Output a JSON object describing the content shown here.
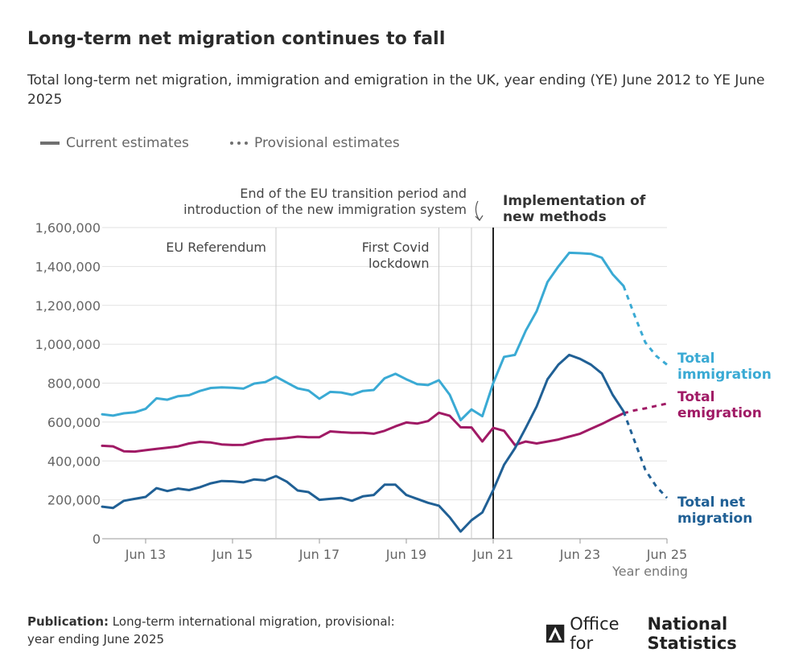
{
  "title": "Long-term net migration continues to fall",
  "subtitle": "Total long-term net migration, immigration and emigration in the UK, year ending (YE) June 2012 to YE June 2025",
  "legend": {
    "current": "Current estimates",
    "provisional": "Provisional estimates"
  },
  "footer": {
    "label": "Publication:",
    "text": "Long-term international migration, provisional: year ending June 2025"
  },
  "logo": {
    "pre": "Office for",
    "bold": "National Statistics"
  },
  "chart_data": {
    "type": "line",
    "xlabel": "Year ending",
    "x_ticks": [
      "Jun 13",
      "Jun 15",
      "Jun 17",
      "Jun 19",
      "Jun 21",
      "Jun 23",
      "Jun 25"
    ],
    "x_tick_values": [
      2013.5,
      2015.5,
      2017.5,
      2019.5,
      2021.5,
      2023.5,
      2025.5
    ],
    "xlim": [
      2012.5,
      2025.5
    ],
    "ylim": [
      0,
      1600000
    ],
    "y_ticks": [
      "0",
      "200,000",
      "400,000",
      "600,000",
      "800,000",
      "1,000,000",
      "1,200,000",
      "1,400,000",
      "1,600,000"
    ],
    "y_tick_values": [
      0,
      200000,
      400000,
      600000,
      800000,
      1000000,
      1200000,
      1400000,
      1600000
    ],
    "grid": "horizontal",
    "annotations": [
      {
        "x": 2016.5,
        "lines": [
          "EU Referendum"
        ],
        "style": "thin"
      },
      {
        "x": 2020.25,
        "lines": [
          "First Covid",
          "lockdown"
        ],
        "style": "thin"
      },
      {
        "x": 2021.0,
        "lines": [
          "End of the EU transition period and",
          "introduction of the new immigration system"
        ],
        "style": "thin"
      },
      {
        "x": 2021.5,
        "lines": [
          "Implementation of",
          "new methods"
        ],
        "style": "bold"
      }
    ],
    "series": [
      {
        "name": "Total immigration",
        "label_lines": [
          "Total",
          "immigration"
        ],
        "color": "#3aaad4",
        "x": [
          2012.5,
          2012.75,
          2013.0,
          2013.25,
          2013.5,
          2013.75,
          2014.0,
          2014.25,
          2014.5,
          2014.75,
          2015.0,
          2015.25,
          2015.5,
          2015.75,
          2016.0,
          2016.25,
          2016.5,
          2016.75,
          2017.0,
          2017.25,
          2017.5,
          2017.75,
          2018.0,
          2018.25,
          2018.5,
          2018.75,
          2019.0,
          2019.25,
          2019.5,
          2019.75,
          2020.0,
          2020.25,
          2020.5,
          2020.75,
          2021.0,
          2021.25,
          2021.5,
          2021.75,
          2022.0,
          2022.25,
          2022.5,
          2022.75,
          2023.0,
          2023.25,
          2023.5,
          2023.75,
          2024.0,
          2024.25,
          2024.5,
          2024.75,
          2025.0,
          2025.25,
          2025.5
        ],
        "values": [
          640000,
          633000,
          645000,
          650000,
          668000,
          722000,
          715000,
          733000,
          738000,
          760000,
          775000,
          778000,
          776000,
          772000,
          798000,
          805000,
          833000,
          803000,
          773000,
          762000,
          720000,
          755000,
          752000,
          740000,
          760000,
          765000,
          825000,
          848000,
          820000,
          795000,
          790000,
          815000,
          740000,
          610000,
          665000,
          630000,
          800000,
          935000,
          945000,
          1070000,
          1170000,
          1320000,
          1400000,
          1470000,
          1468000,
          1465000,
          1445000,
          1360000,
          1300000,
          1150000,
          1010000,
          940000,
          895000
        ],
        "provisional_from_index": 48
      },
      {
        "name": "Total emigration",
        "label_lines": [
          "Total",
          "emigration"
        ],
        "color": "#a01a65",
        "x": [
          2012.5,
          2012.75,
          2013.0,
          2013.25,
          2013.5,
          2013.75,
          2014.0,
          2014.25,
          2014.5,
          2014.75,
          2015.0,
          2015.25,
          2015.5,
          2015.75,
          2016.0,
          2016.25,
          2016.5,
          2016.75,
          2017.0,
          2017.25,
          2017.5,
          2017.75,
          2018.0,
          2018.25,
          2018.5,
          2018.75,
          2019.0,
          2019.25,
          2019.5,
          2019.75,
          2020.0,
          2020.25,
          2020.5,
          2020.75,
          2021.0,
          2021.25,
          2021.5,
          2021.75,
          2022.0,
          2022.25,
          2022.5,
          2022.75,
          2023.0,
          2023.25,
          2023.5,
          2023.75,
          2024.0,
          2024.25,
          2024.5,
          2024.75,
          2025.0,
          2025.25,
          2025.5
        ],
        "values": [
          478000,
          475000,
          450000,
          448000,
          455000,
          462000,
          468000,
          475000,
          490000,
          498000,
          495000,
          485000,
          482000,
          483000,
          498000,
          510000,
          513000,
          518000,
          525000,
          522000,
          522000,
          552000,
          548000,
          545000,
          545000,
          540000,
          555000,
          578000,
          598000,
          592000,
          605000,
          648000,
          632000,
          573000,
          572000,
          500000,
          570000,
          555000,
          482000,
          500000,
          490000,
          500000,
          510000,
          525000,
          540000,
          565000,
          590000,
          618000,
          645000,
          660000,
          670000,
          683000,
          695000
        ],
        "provisional_from_index": 48
      },
      {
        "name": "Total net migration",
        "label_lines": [
          "Total net",
          "migration"
        ],
        "color": "#206095",
        "x": [
          2012.5,
          2012.75,
          2013.0,
          2013.25,
          2013.5,
          2013.75,
          2014.0,
          2014.25,
          2014.5,
          2014.75,
          2015.0,
          2015.25,
          2015.5,
          2015.75,
          2016.0,
          2016.25,
          2016.5,
          2016.75,
          2017.0,
          2017.25,
          2017.5,
          2017.75,
          2018.0,
          2018.25,
          2018.5,
          2018.75,
          2019.0,
          2019.25,
          2019.5,
          2019.75,
          2020.0,
          2020.25,
          2020.5,
          2020.75,
          2021.0,
          2021.25,
          2021.5,
          2021.75,
          2022.0,
          2022.25,
          2022.5,
          2022.75,
          2023.0,
          2023.25,
          2023.5,
          2023.75,
          2024.0,
          2024.25,
          2024.5,
          2024.75,
          2025.0,
          2025.25,
          2025.5
        ],
        "values": [
          165000,
          158000,
          195000,
          205000,
          215000,
          260000,
          245000,
          258000,
          250000,
          265000,
          285000,
          297000,
          295000,
          290000,
          305000,
          300000,
          322000,
          293000,
          248000,
          240000,
          200000,
          205000,
          210000,
          195000,
          218000,
          225000,
          278000,
          278000,
          225000,
          205000,
          185000,
          170000,
          110000,
          37000,
          95000,
          135000,
          250000,
          380000,
          465000,
          570000,
          680000,
          820000,
          895000,
          945000,
          925000,
          895000,
          850000,
          740000,
          655000,
          505000,
          355000,
          270000,
          210000
        ],
        "provisional_from_index": 48
      }
    ]
  }
}
